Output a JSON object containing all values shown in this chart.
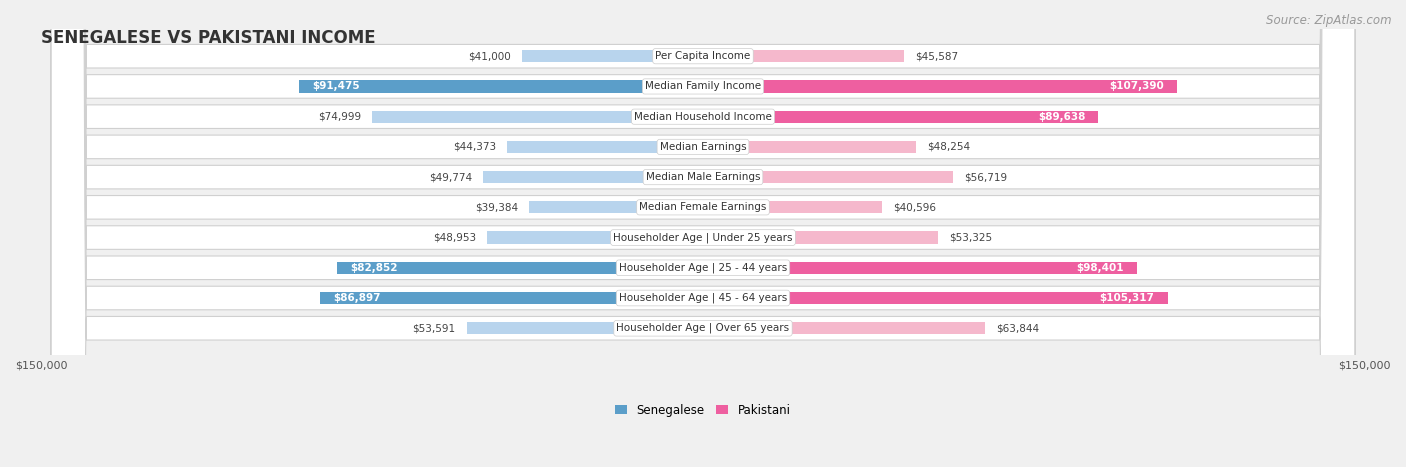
{
  "title": "SENEGALESE VS PAKISTANI INCOME",
  "source": "Source: ZipAtlas.com",
  "categories": [
    "Per Capita Income",
    "Median Family Income",
    "Median Household Income",
    "Median Earnings",
    "Median Male Earnings",
    "Median Female Earnings",
    "Householder Age | Under 25 years",
    "Householder Age | 25 - 44 years",
    "Householder Age | 45 - 64 years",
    "Householder Age | Over 65 years"
  ],
  "senegalese": [
    41000,
    91475,
    74999,
    44373,
    49774,
    39384,
    48953,
    82852,
    86897,
    53591
  ],
  "pakistani": [
    45587,
    107390,
    89638,
    48254,
    56719,
    40596,
    53325,
    98401,
    105317,
    63844
  ],
  "sen_labels": [
    "$41,000",
    "$91,475",
    "$74,999",
    "$44,373",
    "$49,774",
    "$39,384",
    "$48,953",
    "$82,852",
    "$86,897",
    "$53,591"
  ],
  "pak_labels": [
    "$45,587",
    "$107,390",
    "$89,638",
    "$48,254",
    "$56,719",
    "$40,596",
    "$53,325",
    "$98,401",
    "$105,317",
    "$63,844"
  ],
  "sen_color_light": "#b8d4ed",
  "sen_color_medium": "#7aadd4",
  "sen_color_dark": "#5b9ec9",
  "pak_color_light": "#f5b8cc",
  "pak_color_medium": "#f07aaa",
  "pak_color_dark": "#ee5fa0",
  "axis_max": 150000,
  "bg_color": "#f0f0f0",
  "row_bg": "#ffffff",
  "sen_threshold_dark": 75000,
  "pak_threshold_dark": 75000,
  "title_fontsize": 12,
  "source_fontsize": 8.5,
  "label_fontsize": 7.5,
  "cat_fontsize": 7.5
}
